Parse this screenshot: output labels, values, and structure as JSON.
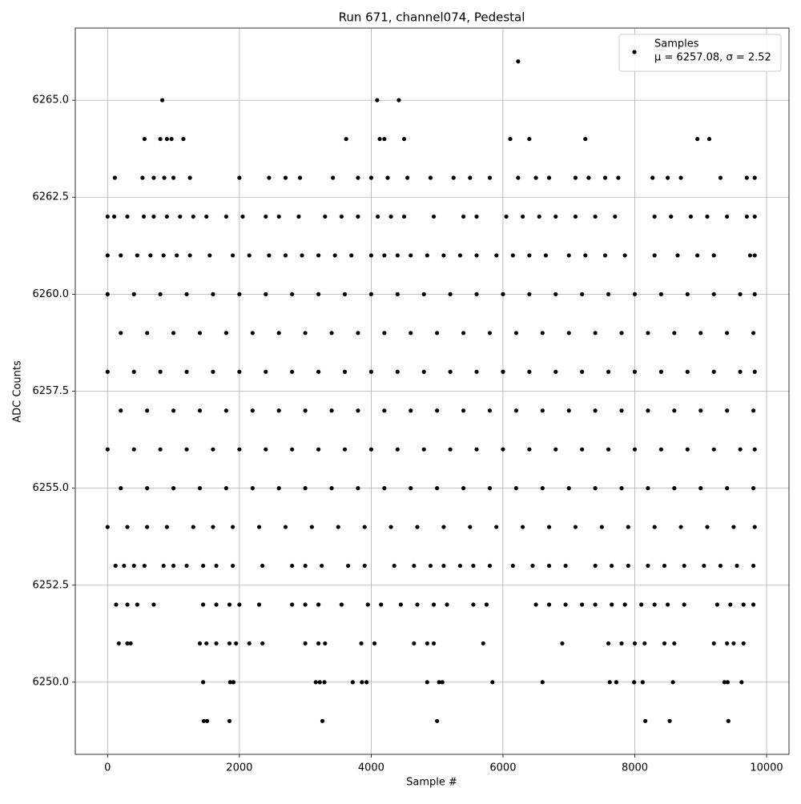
{
  "chart_data": {
    "type": "scatter",
    "title": "Run 671, channel074, Pedestal",
    "xlabel": "Sample #",
    "ylabel": "ADC Counts",
    "legend_note": "μ = 6257.08, σ = 2.52",
    "legend_position": "upper right",
    "grid": true,
    "xlim": [
      -490,
      10340
    ],
    "ylim": [
      6248.14,
      6266.86
    ],
    "xticks": [
      0,
      2000,
      4000,
      6000,
      8000,
      10000
    ],
    "yticks": [
      {
        "value": 6250,
        "label": "6250.0"
      },
      6252.5,
      {
        "value": 6255,
        "label": "6255.0"
      },
      6257.5,
      {
        "value": 6260,
        "label": "6260.0"
      },
      6262.5,
      {
        "value": 6265,
        "label": "6265.0"
      }
    ],
    "series": [
      {
        "name": "Samples",
        "color": "#000000",
        "x": [
          6230,
          830,
          4090,
          4420,
          560,
          800,
          900,
          970,
          1150,
          3620,
          4130,
          4200,
          4500,
          6110,
          6400,
          7250,
          8950,
          9130,
          110,
          530,
          700,
          860,
          1000,
          1250,
          2000,
          2450,
          2700,
          2920,
          3420,
          3800,
          4000,
          4250,
          4550,
          4900,
          5250,
          5500,
          5800,
          6230,
          6500,
          6700,
          7100,
          7300,
          7550,
          7750,
          8270,
          8500,
          8700,
          9300,
          9700,
          9820,
          0,
          100,
          300,
          550,
          700,
          900,
          1100,
          1300,
          1500,
          1800,
          2050,
          2400,
          2600,
          2900,
          3300,
          3550,
          3800,
          4100,
          4300,
          4500,
          4950,
          5400,
          5600,
          6050,
          6300,
          6550,
          6800,
          7100,
          7400,
          7700,
          8300,
          8550,
          8850,
          9100,
          9400,
          9700,
          9820,
          0,
          200,
          450,
          650,
          850,
          1050,
          1250,
          1550,
          1900,
          2150,
          2450,
          2700,
          2950,
          3200,
          3450,
          3700,
          4000,
          4200,
          4400,
          4600,
          4850,
          5100,
          5350,
          5600,
          5900,
          6150,
          6400,
          6650,
          7000,
          7250,
          7550,
          7850,
          8300,
          8650,
          8950,
          9200,
          9750,
          9820,
          0,
          400,
          800,
          1200,
          1600,
          2000,
          2400,
          2800,
          3200,
          3600,
          4000,
          4400,
          4800,
          5200,
          5600,
          6000,
          6400,
          6800,
          7200,
          7600,
          8000,
          8400,
          8800,
          9200,
          9600,
          9820,
          200,
          600,
          1000,
          1400,
          1800,
          2200,
          2600,
          3000,
          3400,
          3800,
          4200,
          4600,
          5000,
          5400,
          5800,
          6200,
          6600,
          7000,
          7400,
          7800,
          8200,
          8600,
          9000,
          9400,
          9800,
          0,
          400,
          800,
          1200,
          1600,
          2000,
          2400,
          2800,
          3200,
          3600,
          4000,
          4400,
          4800,
          5200,
          5600,
          6000,
          6400,
          6800,
          7200,
          7600,
          8000,
          8400,
          8800,
          9200,
          9600,
          9820,
          200,
          600,
          1000,
          1400,
          1800,
          2200,
          2600,
          3000,
          3400,
          3800,
          4200,
          4600,
          5000,
          5400,
          5800,
          6200,
          6600,
          7000,
          7400,
          7800,
          8200,
          8600,
          9000,
          9400,
          9800,
          0,
          400,
          800,
          1200,
          1600,
          2000,
          2400,
          2800,
          3200,
          3600,
          4000,
          4400,
          4800,
          5200,
          5600,
          6000,
          6400,
          6800,
          7200,
          7600,
          8000,
          8400,
          8800,
          9200,
          9600,
          9820,
          200,
          600,
          1000,
          1400,
          1800,
          2200,
          2600,
          3000,
          3400,
          3800,
          4200,
          4600,
          5000,
          5400,
          5800,
          6200,
          6600,
          7000,
          7400,
          7800,
          8200,
          8600,
          9000,
          9400,
          9800,
          0,
          300,
          600,
          900,
          1300,
          1600,
          1900,
          2300,
          2700,
          3100,
          3500,
          3900,
          4300,
          4700,
          5100,
          5500,
          5900,
          6300,
          6700,
          7100,
          7500,
          7900,
          8300,
          8700,
          9100,
          9500,
          9820,
          120,
          250,
          400,
          560,
          850,
          1000,
          1200,
          1450,
          1650,
          1900,
          2350,
          2800,
          3000,
          3250,
          3650,
          3900,
          4350,
          4650,
          4900,
          5100,
          5350,
          5550,
          5800,
          6150,
          6450,
          6700,
          6950,
          7400,
          7650,
          7900,
          8200,
          8450,
          8750,
          9050,
          9300,
          9550,
          9800,
          130,
          300,
          450,
          700,
          1450,
          1650,
          1850,
          2000,
          2300,
          2800,
          3000,
          3200,
          3550,
          3950,
          4150,
          4450,
          4700,
          4950,
          5150,
          5550,
          5750,
          6500,
          6700,
          6950,
          7200,
          7400,
          7650,
          7850,
          8100,
          8300,
          8500,
          8750,
          9250,
          9450,
          9650,
          9800,
          170,
          300,
          350,
          1400,
          1500,
          1650,
          1850,
          1950,
          2150,
          2350,
          3000,
          3200,
          3300,
          3850,
          4050,
          4650,
          4850,
          4950,
          5700,
          6900,
          7600,
          7800,
          8000,
          8150,
          8450,
          8600,
          9200,
          9400,
          9500,
          9650,
          1450,
          1860,
          1910,
          3160,
          3220,
          3290,
          3720,
          3860,
          3930,
          4850,
          5030,
          5080,
          5840,
          6600,
          7620,
          7720,
          7990,
          8120,
          8580,
          9360,
          9410,
          9620,
          1460,
          1510,
          1850,
          3260,
          5000,
          8160,
          8530,
          9420
        ],
        "values": [
          6266,
          6265,
          6265,
          6265,
          6264,
          6264,
          6264,
          6264,
          6264,
          6264,
          6264,
          6264,
          6264,
          6264,
          6264,
          6264,
          6264,
          6264,
          6263,
          6263,
          6263,
          6263,
          6263,
          6263,
          6263,
          6263,
          6263,
          6263,
          6263,
          6263,
          6263,
          6263,
          6263,
          6263,
          6263,
          6263,
          6263,
          6263,
          6263,
          6263,
          6263,
          6263,
          6263,
          6263,
          6263,
          6263,
          6263,
          6263,
          6263,
          6263,
          6262,
          6262,
          6262,
          6262,
          6262,
          6262,
          6262,
          6262,
          6262,
          6262,
          6262,
          6262,
          6262,
          6262,
          6262,
          6262,
          6262,
          6262,
          6262,
          6262,
          6262,
          6262,
          6262,
          6262,
          6262,
          6262,
          6262,
          6262,
          6262,
          6262,
          6262,
          6262,
          6262,
          6262,
          6262,
          6262,
          6262,
          6261,
          6261,
          6261,
          6261,
          6261,
          6261,
          6261,
          6261,
          6261,
          6261,
          6261,
          6261,
          6261,
          6261,
          6261,
          6261,
          6261,
          6261,
          6261,
          6261,
          6261,
          6261,
          6261,
          6261,
          6261,
          6261,
          6261,
          6261,
          6261,
          6261,
          6261,
          6261,
          6261,
          6261,
          6261,
          6261,
          6261,
          6261,
          6260,
          6260,
          6260,
          6260,
          6260,
          6260,
          6260,
          6260,
          6260,
          6260,
          6260,
          6260,
          6260,
          6260,
          6260,
          6260,
          6260,
          6260,
          6260,
          6260,
          6260,
          6260,
          6260,
          6260,
          6260,
          6260,
          6259,
          6259,
          6259,
          6259,
          6259,
          6259,
          6259,
          6259,
          6259,
          6259,
          6259,
          6259,
          6259,
          6259,
          6259,
          6259,
          6259,
          6259,
          6259,
          6259,
          6259,
          6259,
          6259,
          6259,
          6259,
          6258,
          6258,
          6258,
          6258,
          6258,
          6258,
          6258,
          6258,
          6258,
          6258,
          6258,
          6258,
          6258,
          6258,
          6258,
          6258,
          6258,
          6258,
          6258,
          6258,
          6258,
          6258,
          6258,
          6258,
          6258,
          6258,
          6257,
          6257,
          6257,
          6257,
          6257,
          6257,
          6257,
          6257,
          6257,
          6257,
          6257,
          6257,
          6257,
          6257,
          6257,
          6257,
          6257,
          6257,
          6257,
          6257,
          6257,
          6257,
          6257,
          6257,
          6257,
          6256,
          6256,
          6256,
          6256,
          6256,
          6256,
          6256,
          6256,
          6256,
          6256,
          6256,
          6256,
          6256,
          6256,
          6256,
          6256,
          6256,
          6256,
          6256,
          6256,
          6256,
          6256,
          6256,
          6256,
          6256,
          6256,
          6255,
          6255,
          6255,
          6255,
          6255,
          6255,
          6255,
          6255,
          6255,
          6255,
          6255,
          6255,
          6255,
          6255,
          6255,
          6255,
          6255,
          6255,
          6255,
          6255,
          6255,
          6255,
          6255,
          6255,
          6255,
          6254,
          6254,
          6254,
          6254,
          6254,
          6254,
          6254,
          6254,
          6254,
          6254,
          6254,
          6254,
          6254,
          6254,
          6254,
          6254,
          6254,
          6254,
          6254,
          6254,
          6254,
          6254,
          6254,
          6254,
          6254,
          6254,
          6254,
          6253,
          6253,
          6253,
          6253,
          6253,
          6253,
          6253,
          6253,
          6253,
          6253,
          6253,
          6253,
          6253,
          6253,
          6253,
          6253,
          6253,
          6253,
          6253,
          6253,
          6253,
          6253,
          6253,
          6253,
          6253,
          6253,
          6253,
          6253,
          6253,
          6253,
          6253,
          6253,
          6253,
          6253,
          6253,
          6253,
          6253,
          6252,
          6252,
          6252,
          6252,
          6252,
          6252,
          6252,
          6252,
          6252,
          6252,
          6252,
          6252,
          6252,
          6252,
          6252,
          6252,
          6252,
          6252,
          6252,
          6252,
          6252,
          6252,
          6252,
          6252,
          6252,
          6252,
          6252,
          6252,
          6252,
          6252,
          6252,
          6252,
          6252,
          6252,
          6252,
          6252,
          6251,
          6251,
          6251,
          6251,
          6251,
          6251,
          6251,
          6251,
          6251,
          6251,
          6251,
          6251,
          6251,
          6251,
          6251,
          6251,
          6251,
          6251,
          6251,
          6251,
          6251,
          6251,
          6251,
          6251,
          6251,
          6251,
          6251,
          6251,
          6251,
          6251,
          6250,
          6250,
          6250,
          6250,
          6250,
          6250,
          6250,
          6250,
          6250,
          6250,
          6250,
          6250,
          6250,
          6250,
          6250,
          6250,
          6250,
          6250,
          6250,
          6250,
          6250,
          6250,
          6249,
          6249,
          6249,
          6249,
          6249,
          6249,
          6249,
          6249
        ]
      }
    ]
  }
}
